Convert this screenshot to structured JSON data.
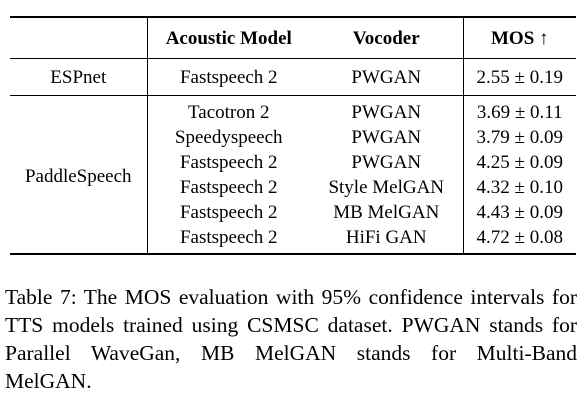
{
  "table": {
    "headers": {
      "system": "",
      "acoustic_model": "Acoustic Model",
      "vocoder": "Vocoder",
      "mos": "MOS ↑"
    },
    "groups": [
      {
        "system": "ESPnet",
        "rows": [
          {
            "acoustic_model": "Fastspeech 2",
            "vocoder": "PWGAN",
            "mos": "2.55 ± 0.19"
          }
        ]
      },
      {
        "system": "PaddleSpeech",
        "rows": [
          {
            "acoustic_model": "Tacotron 2",
            "vocoder": "PWGAN",
            "mos": "3.69 ± 0.11"
          },
          {
            "acoustic_model": "Speedyspeech",
            "vocoder": "PWGAN",
            "mos": "3.79 ± 0.09"
          },
          {
            "acoustic_model": "Fastspeech 2",
            "vocoder": "PWGAN",
            "mos": "4.25 ± 0.09"
          },
          {
            "acoustic_model": "Fastspeech 2",
            "vocoder": "Style MelGAN",
            "mos": "4.32 ± 0.10"
          },
          {
            "acoustic_model": "Fastspeech 2",
            "vocoder": "MB MelGAN",
            "mos": "4.43 ± 0.09"
          },
          {
            "acoustic_model": "Fastspeech 2",
            "vocoder": "HiFi GAN",
            "mos": "4.72 ± 0.08"
          }
        ]
      }
    ]
  },
  "caption": "Table 7: The MOS evaluation with 95% confidence intervals for TTS models trained using CSMSC dataset. PWGAN stands for Parallel WaveGan, MB MelGAN stands for Multi-Band MelGAN."
}
